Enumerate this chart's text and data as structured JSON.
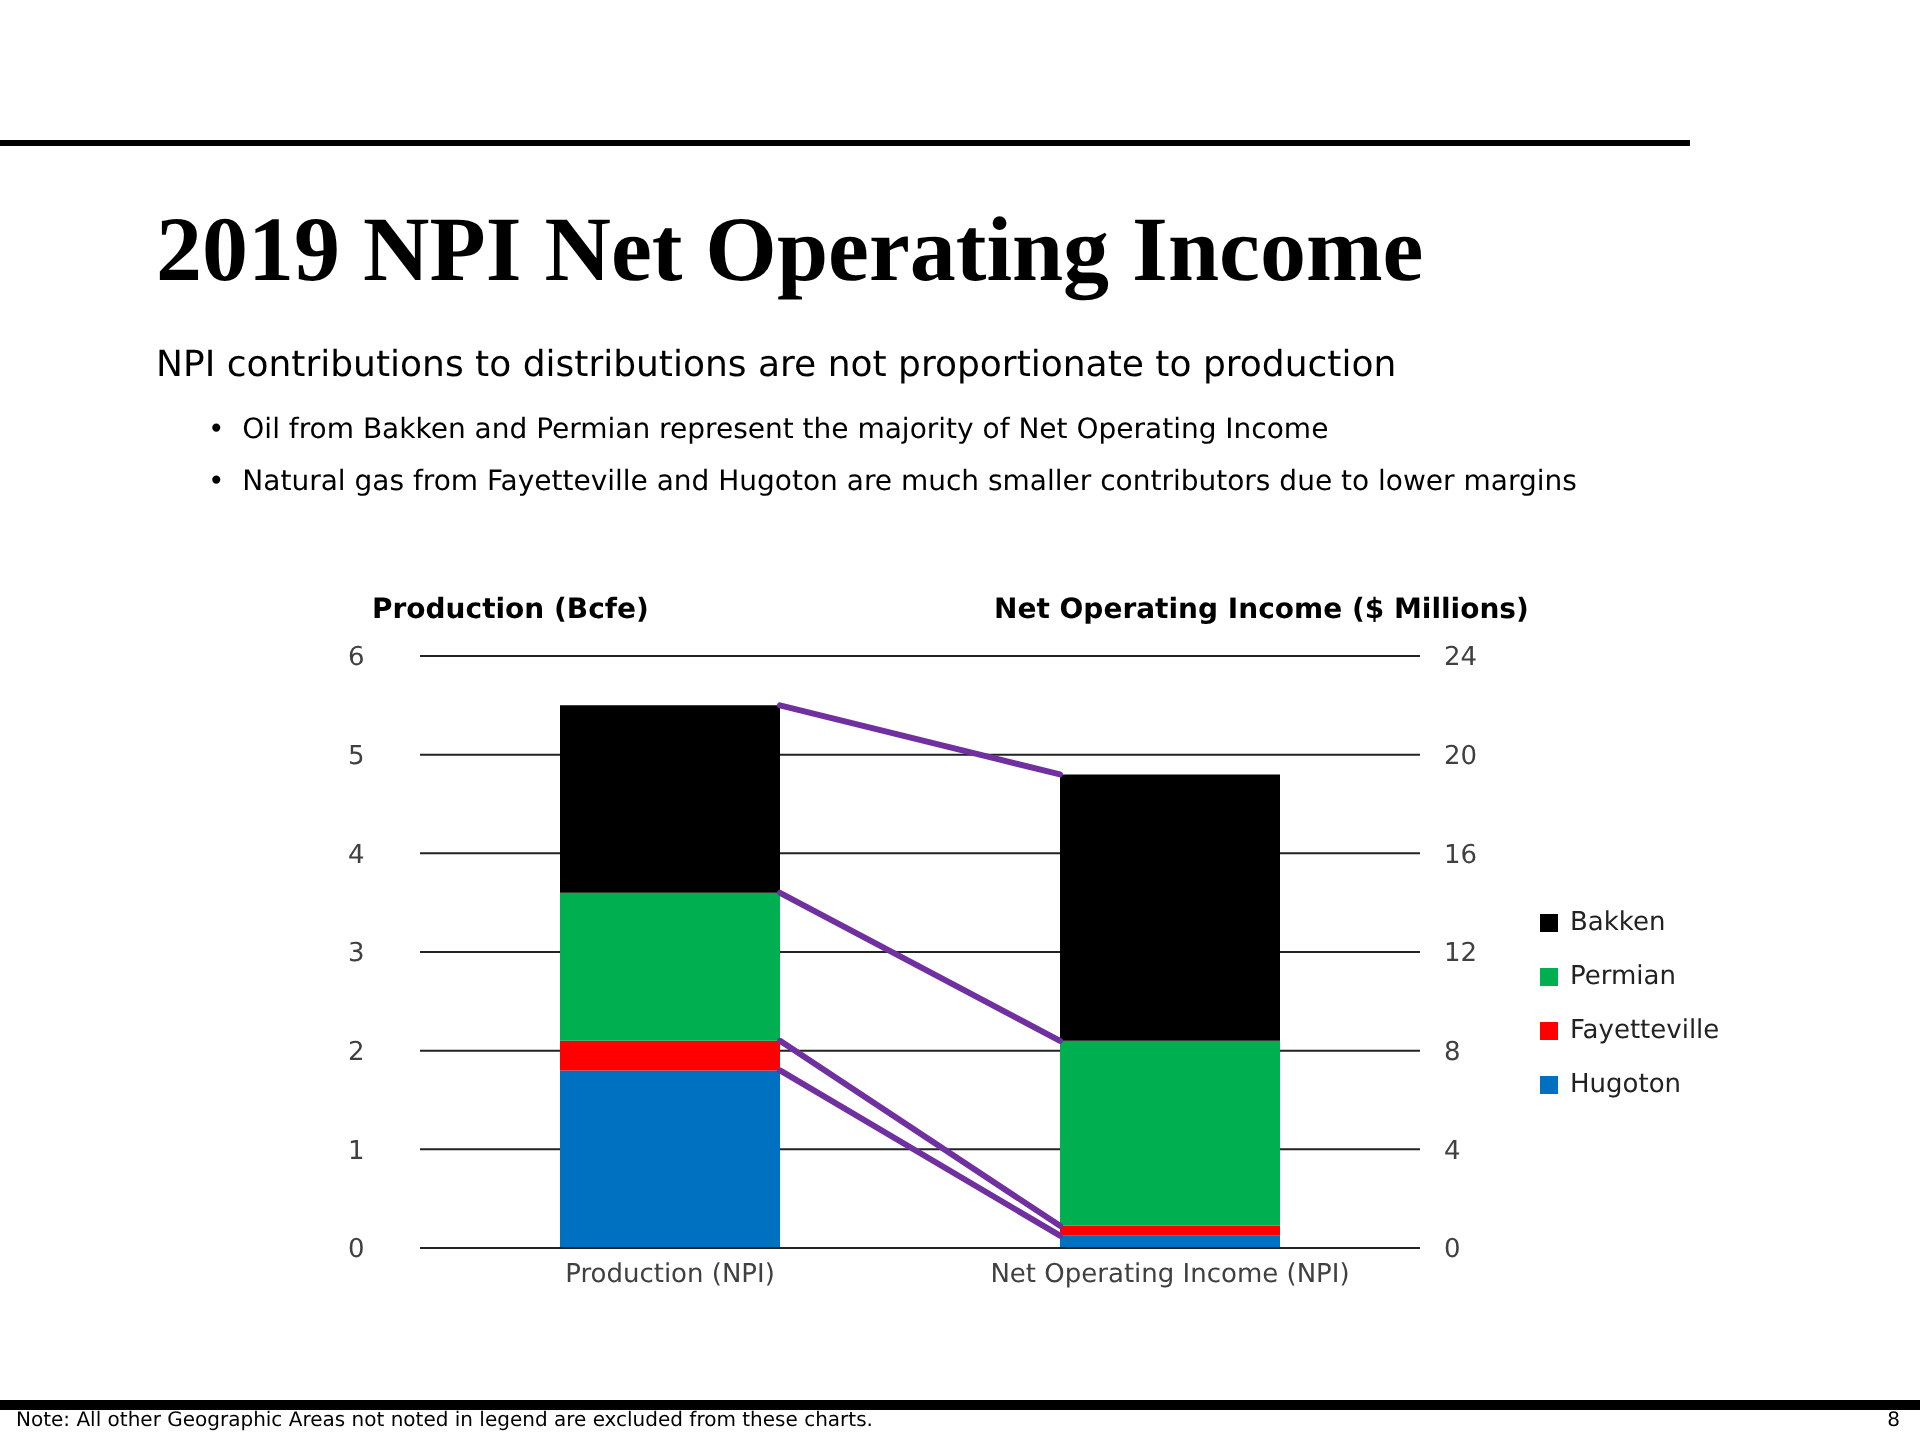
{
  "chart_data": {
    "type": "bar",
    "title": "2019 NPI Net Operating Income",
    "subtitle": "NPI contributions to distributions are not proportionate to production",
    "annotations": [
      "•  Oil from Bakken and Permian represent the majority of Net Operating Income",
      "•  Natural gas from Fayetteville and Hugoton are much smaller contributors due to lower margins",
      "Note:  All other Geographic Areas not noted in legend are excluded from these charts.",
      "8"
    ],
    "ylabel": "Production (Bcfe)",
    "y2label": "Net Operating Income ($ Millions)",
    "categories": [
      "Production (NPI)",
      "Net Operating Income (NPI)"
    ],
    "stacked": true,
    "series": [
      {
        "name": "Hugoton",
        "color": "#0070c0",
        "values": [
          1.8,
          null
        ]
      },
      {
        "name": "Fayetteville",
        "color": "#ff0000",
        "values": [
          0.3,
          null
        ]
      },
      {
        "name": "Permian",
        "color": "#00b050",
        "values": [
          1.5,
          null
        ]
      },
      {
        "name": "Bakken",
        "color": "#000000",
        "values": [
          1.9,
          null
        ]
      },
      {
        "color": "#0070c0",
        "axis": "y2",
        "values": [
          null,
          0.5
        ]
      },
      {
        "color": "#ff0000",
        "axis": "y2",
        "values": [
          null,
          0.4
        ]
      },
      {
        "color": "#00b050",
        "axis": "y2",
        "values": [
          null,
          7.5
        ]
      },
      {
        "color": "#000000",
        "axis": "y2",
        "values": [
          null,
          10.8
        ]
      }
    ],
    "ylim": [
      0,
      6
    ],
    "yticks": [
      0,
      1,
      2,
      3,
      4,
      5,
      6
    ],
    "y2lim": [
      0,
      24
    ],
    "y2ticks": [
      0,
      4,
      8,
      12,
      16,
      20,
      24
    ],
    "grid": "y",
    "legend": "right"
  }
}
